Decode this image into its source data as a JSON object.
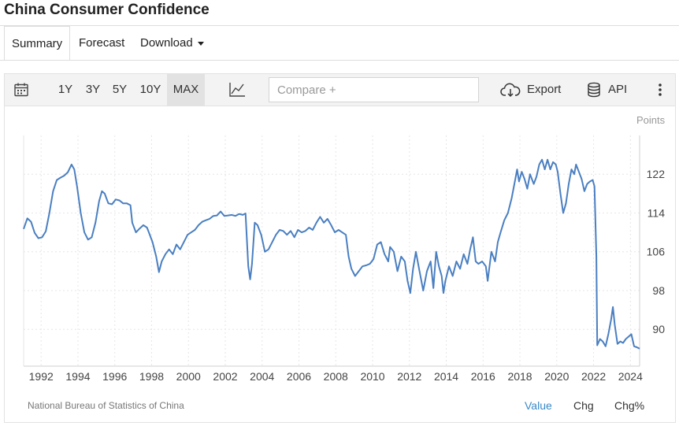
{
  "page": {
    "title": "China Consumer Confidence"
  },
  "tabs": [
    {
      "label": "Summary"
    },
    {
      "label": "Forecast"
    },
    {
      "label": "Download"
    }
  ],
  "toolbar": {
    "calendar_icon": "calendar-icon",
    "ranges": [
      "1Y",
      "3Y",
      "5Y",
      "10Y",
      "MAX"
    ],
    "active_range": "MAX",
    "chart_type_icon": "line-chart-icon",
    "compare_placeholder": "Compare +",
    "export_label": "Export",
    "api_label": "API",
    "more_icon": "kebab-menu-icon"
  },
  "footer": {
    "source": "National Bureau of Statistics of China",
    "formats": [
      "Value",
      "Chg",
      "Chg%"
    ],
    "active_format": "Value"
  },
  "colors": {
    "line": "#4a7fc1",
    "active_format": "#3a89c9",
    "grid": "#e6e6e6"
  },
  "chart_data": {
    "type": "line",
    "title": "China Consumer Confidence",
    "ylabel": "Points",
    "xlabel": "",
    "x_ticks": [
      "1992",
      "1994",
      "1996",
      "1998",
      "2000",
      "2002",
      "2004",
      "2006",
      "2008",
      "2010",
      "2012",
      "2014",
      "2016",
      "2018",
      "2020",
      "2022",
      "2024"
    ],
    "y_ticks": [
      90,
      98,
      106,
      114,
      122
    ],
    "xlim": [
      1991.1,
      2024.55
    ],
    "ylim": [
      82.4,
      130
    ],
    "grid": true,
    "y_axis_side": "right",
    "series": [
      {
        "name": "",
        "points": [
          [
            1991.1,
            110.7
          ],
          [
            1991.3,
            112.9
          ],
          [
            1991.5,
            112.2
          ],
          [
            1991.7,
            109.9
          ],
          [
            1991.9,
            108.8
          ],
          [
            1992.1,
            109.0
          ],
          [
            1992.3,
            110.2
          ],
          [
            1992.5,
            114.0
          ],
          [
            1992.7,
            118.5
          ],
          [
            1992.9,
            120.8
          ],
          [
            1993.1,
            121.3
          ],
          [
            1993.3,
            121.7
          ],
          [
            1993.5,
            122.4
          ],
          [
            1993.7,
            124.0
          ],
          [
            1993.85,
            123.0
          ],
          [
            1994.0,
            119.5
          ],
          [
            1994.2,
            114.0
          ],
          [
            1994.4,
            110.0
          ],
          [
            1994.6,
            108.5
          ],
          [
            1994.8,
            109.0
          ],
          [
            1995.0,
            112.0
          ],
          [
            1995.2,
            116.5
          ],
          [
            1995.35,
            118.5
          ],
          [
            1995.5,
            118.0
          ],
          [
            1995.7,
            116.0
          ],
          [
            1995.9,
            115.8
          ],
          [
            1996.1,
            116.8
          ],
          [
            1996.3,
            116.6
          ],
          [
            1996.5,
            116.0
          ],
          [
            1996.7,
            116.0
          ],
          [
            1996.9,
            115.6
          ],
          [
            1997.0,
            112.0
          ],
          [
            1997.2,
            110.0
          ],
          [
            1997.4,
            110.8
          ],
          [
            1997.6,
            111.5
          ],
          [
            1997.8,
            111.0
          ],
          [
            1997.9,
            110.0
          ],
          [
            1998.1,
            108.0
          ],
          [
            1998.3,
            105.0
          ],
          [
            1998.45,
            101.8
          ],
          [
            1998.6,
            104.0
          ],
          [
            1998.8,
            105.5
          ],
          [
            1999.0,
            106.5
          ],
          [
            1999.2,
            105.5
          ],
          [
            1999.4,
            107.5
          ],
          [
            1999.6,
            106.5
          ],
          [
            1999.8,
            108.0
          ],
          [
            2000.0,
            109.5
          ],
          [
            2000.2,
            110.0
          ],
          [
            2000.4,
            110.5
          ],
          [
            2000.6,
            111.5
          ],
          [
            2000.8,
            112.2
          ],
          [
            2001.0,
            112.5
          ],
          [
            2001.2,
            112.8
          ],
          [
            2001.4,
            113.4
          ],
          [
            2001.6,
            113.5
          ],
          [
            2001.8,
            114.3
          ],
          [
            2002.0,
            113.4
          ],
          [
            2002.2,
            113.5
          ],
          [
            2002.4,
            113.6
          ],
          [
            2002.6,
            113.4
          ],
          [
            2002.8,
            113.8
          ],
          [
            2003.0,
            113.6
          ],
          [
            2003.15,
            113.9
          ],
          [
            2003.3,
            103.0
          ],
          [
            2003.4,
            100.3
          ],
          [
            2003.5,
            103.5
          ],
          [
            2003.65,
            112.0
          ],
          [
            2003.8,
            111.5
          ],
          [
            2004.0,
            109.5
          ],
          [
            2004.2,
            106.0
          ],
          [
            2004.4,
            106.5
          ],
          [
            2004.6,
            108.0
          ],
          [
            2004.8,
            109.5
          ],
          [
            2005.0,
            110.5
          ],
          [
            2005.2,
            110.3
          ],
          [
            2005.4,
            109.5
          ],
          [
            2005.6,
            110.3
          ],
          [
            2005.8,
            109.0
          ],
          [
            2006.0,
            110.5
          ],
          [
            2006.2,
            110.0
          ],
          [
            2006.4,
            110.3
          ],
          [
            2006.6,
            111.0
          ],
          [
            2006.8,
            110.5
          ],
          [
            2007.0,
            112.0
          ],
          [
            2007.2,
            113.2
          ],
          [
            2007.4,
            112.0
          ],
          [
            2007.6,
            112.8
          ],
          [
            2007.8,
            111.5
          ],
          [
            2008.0,
            110.0
          ],
          [
            2008.2,
            110.5
          ],
          [
            2008.4,
            110.0
          ],
          [
            2008.6,
            109.5
          ],
          [
            2008.75,
            105.0
          ],
          [
            2008.9,
            102.5
          ],
          [
            2009.1,
            101.0
          ],
          [
            2009.3,
            102.0
          ],
          [
            2009.5,
            103.0
          ],
          [
            2009.7,
            103.2
          ],
          [
            2009.9,
            103.5
          ],
          [
            2010.1,
            104.5
          ],
          [
            2010.3,
            107.5
          ],
          [
            2010.5,
            108.0
          ],
          [
            2010.7,
            105.5
          ],
          [
            2010.9,
            104.0
          ],
          [
            2011.0,
            107.0
          ],
          [
            2011.2,
            106.0
          ],
          [
            2011.4,
            102.0
          ],
          [
            2011.6,
            105.0
          ],
          [
            2011.8,
            104.0
          ],
          [
            2011.95,
            100.0
          ],
          [
            2012.1,
            97.5
          ],
          [
            2012.25,
            102.5
          ],
          [
            2012.4,
            106.0
          ],
          [
            2012.6,
            102.0
          ],
          [
            2012.8,
            98.0
          ],
          [
            2013.0,
            102.0
          ],
          [
            2013.2,
            104.0
          ],
          [
            2013.35,
            98.5
          ],
          [
            2013.5,
            106.0
          ],
          [
            2013.65,
            103.0
          ],
          [
            2013.8,
            101.0
          ],
          [
            2013.9,
            97.5
          ],
          [
            2014.0,
            100.0
          ],
          [
            2014.2,
            103.0
          ],
          [
            2014.4,
            101.0
          ],
          [
            2014.6,
            104.0
          ],
          [
            2014.8,
            102.5
          ],
          [
            2015.0,
            105.5
          ],
          [
            2015.2,
            103.5
          ],
          [
            2015.35,
            106.5
          ],
          [
            2015.5,
            109.0
          ],
          [
            2015.65,
            104.0
          ],
          [
            2015.8,
            103.5
          ],
          [
            2016.0,
            104.0
          ],
          [
            2016.2,
            103.0
          ],
          [
            2016.3,
            100.0
          ],
          [
            2016.5,
            106.0
          ],
          [
            2016.7,
            104.0
          ],
          [
            2016.85,
            108.0
          ],
          [
            2017.0,
            110.0
          ],
          [
            2017.2,
            112.5
          ],
          [
            2017.4,
            114.0
          ],
          [
            2017.6,
            117.0
          ],
          [
            2017.8,
            121.0
          ],
          [
            2017.9,
            123.0
          ],
          [
            2018.0,
            120.5
          ],
          [
            2018.15,
            122.5
          ],
          [
            2018.3,
            121.0
          ],
          [
            2018.45,
            119.0
          ],
          [
            2018.6,
            122.0
          ],
          [
            2018.8,
            120.0
          ],
          [
            2018.95,
            121.5
          ],
          [
            2019.1,
            124.0
          ],
          [
            2019.25,
            125.0
          ],
          [
            2019.4,
            123.0
          ],
          [
            2019.55,
            125.0
          ],
          [
            2019.7,
            123.0
          ],
          [
            2019.85,
            124.5
          ],
          [
            2020.0,
            124.0
          ],
          [
            2020.1,
            122.5
          ],
          [
            2020.25,
            118.0
          ],
          [
            2020.4,
            114.0
          ],
          [
            2020.55,
            116.0
          ],
          [
            2020.7,
            120.0
          ],
          [
            2020.85,
            123.0
          ],
          [
            2021.0,
            122.0
          ],
          [
            2021.1,
            124.0
          ],
          [
            2021.25,
            122.5
          ],
          [
            2021.4,
            121.0
          ],
          [
            2021.55,
            118.5
          ],
          [
            2021.7,
            120.0
          ],
          [
            2021.85,
            120.5
          ],
          [
            2022.0,
            120.8
          ],
          [
            2022.1,
            119.5
          ],
          [
            2022.2,
            105.0
          ],
          [
            2022.25,
            86.7
          ],
          [
            2022.4,
            88.0
          ],
          [
            2022.55,
            87.5
          ],
          [
            2022.7,
            86.5
          ],
          [
            2022.85,
            89.0
          ],
          [
            2023.0,
            92.0
          ],
          [
            2023.1,
            94.6
          ],
          [
            2023.2,
            91.0
          ],
          [
            2023.35,
            87.0
          ],
          [
            2023.5,
            87.5
          ],
          [
            2023.65,
            87.2
          ],
          [
            2023.8,
            88.0
          ],
          [
            2023.95,
            88.5
          ],
          [
            2024.1,
            89.0
          ],
          [
            2024.25,
            86.5
          ],
          [
            2024.4,
            86.3
          ],
          [
            2024.55,
            86.0
          ]
        ]
      }
    ]
  }
}
